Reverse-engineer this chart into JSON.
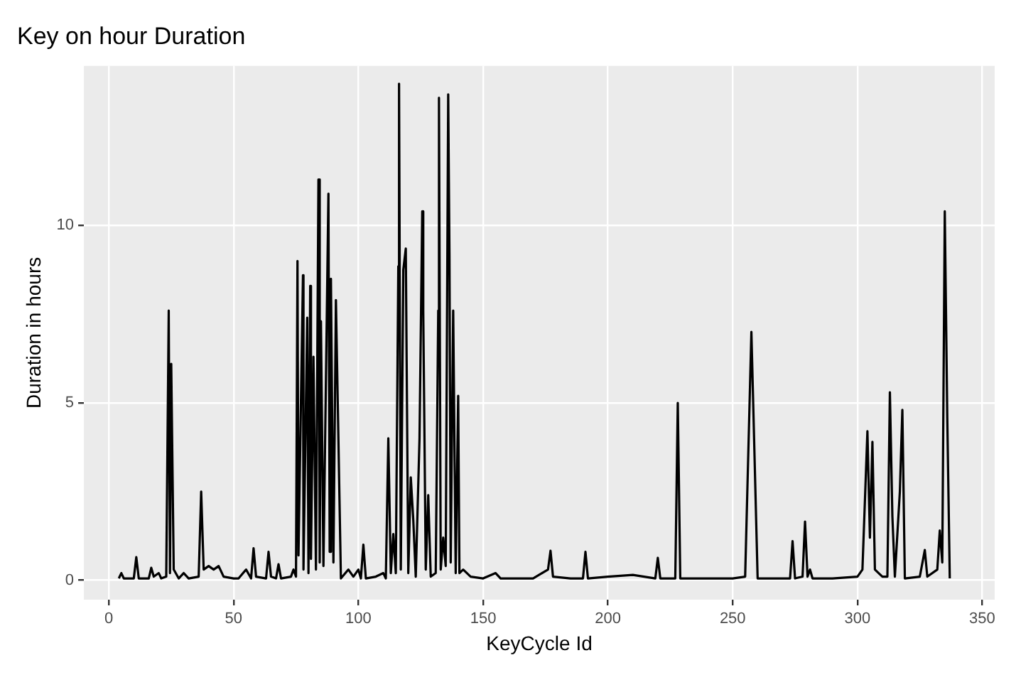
{
  "chart_data": {
    "type": "line",
    "title": "Key on hour Duration",
    "xlabel": "KeyCycle Id",
    "ylabel": "Duration in hours",
    "xlim": [
      -10,
      355
    ],
    "xticks": [
      0,
      50,
      100,
      150,
      200,
      250,
      300,
      350
    ],
    "ylim": [
      -0.55,
      14.5
    ],
    "yticks": [
      0,
      5,
      10
    ],
    "grid": true,
    "marker": "none",
    "line_style": "solid",
    "legend": false,
    "series": [
      {
        "color": "#000000",
        "x": [
          4,
          5,
          6,
          10,
          11,
          12,
          16,
          17,
          18,
          20,
          21,
          23,
          24,
          24.5,
          25,
          26,
          28,
          30,
          32,
          36,
          37,
          38,
          40,
          42,
          44,
          46,
          50,
          52,
          55,
          57,
          58,
          59,
          63,
          64,
          65,
          67,
          68,
          69,
          73,
          74,
          75,
          75.6,
          76,
          77.8,
          78,
          79.5,
          80,
          80.7,
          81,
          82,
          83,
          84,
          84.5,
          85,
          86,
          88,
          88.5,
          89,
          90,
          91,
          93,
          96,
          98,
          100,
          101,
          102,
          103,
          107,
          110,
          111,
          112,
          113,
          114,
          115,
          116,
          116.3,
          117,
          118,
          119,
          120,
          121,
          122,
          123,
          124.5,
          125.6,
          126,
          127,
          128,
          129,
          131,
          132,
          132.3,
          133,
          134,
          135,
          136,
          136.5,
          137,
          138,
          139,
          140,
          140.5,
          142,
          145,
          150,
          155,
          157,
          170,
          176,
          177,
          178,
          185,
          190,
          191,
          192,
          200,
          210,
          219,
          220,
          221,
          227,
          228,
          229,
          240,
          250,
          255,
          257.5,
          260,
          270,
          273,
          274,
          275,
          278,
          279,
          280,
          281,
          282,
          290,
          300,
          302,
          304,
          305,
          306,
          307,
          310,
          312,
          313,
          314,
          315,
          317,
          318,
          319,
          325,
          327,
          328,
          332,
          333,
          334,
          335,
          336,
          337
        ],
        "values": [
          0.05,
          0.2,
          0.05,
          0.05,
          0.65,
          0.05,
          0.05,
          0.35,
          0.1,
          0.2,
          0.05,
          0.1,
          7.6,
          0.2,
          6.1,
          0.3,
          0.05,
          0.2,
          0.05,
          0.1,
          2.5,
          0.3,
          0.4,
          0.3,
          0.4,
          0.1,
          0.05,
          0.05,
          0.3,
          0.05,
          0.9,
          0.1,
          0.05,
          0.8,
          0.1,
          0.05,
          0.45,
          0.05,
          0.1,
          0.3,
          0.1,
          9.0,
          0.7,
          8.6,
          0.3,
          7.4,
          0.2,
          8.3,
          0.6,
          6.3,
          0.3,
          11.3,
          0.5,
          7.3,
          0.4,
          10.9,
          0.8,
          8.5,
          0.5,
          7.9,
          0.05,
          0.3,
          0.1,
          0.3,
          0.05,
          1.0,
          0.05,
          0.1,
          0.2,
          0.05,
          4.0,
          0.2,
          1.3,
          0.2,
          8.85,
          14.0,
          0.3,
          8.75,
          9.35,
          0.2,
          2.9,
          1.7,
          0.1,
          4.0,
          10.4,
          7.6,
          0.3,
          2.4,
          0.1,
          0.2,
          7.6,
          13.6,
          0.3,
          1.2,
          0.4,
          13.7,
          9.2,
          0.5,
          7.6,
          0.2,
          5.2,
          0.2,
          0.3,
          0.1,
          0.05,
          0.2,
          0.05,
          0.05,
          0.3,
          0.83,
          0.1,
          0.05,
          0.05,
          0.8,
          0.05,
          0.1,
          0.15,
          0.05,
          0.63,
          0.05,
          0.05,
          5.0,
          0.05,
          0.05,
          0.05,
          0.1,
          7.0,
          0.05,
          0.05,
          0.05,
          1.1,
          0.05,
          0.1,
          1.65,
          0.1,
          0.3,
          0.05,
          0.05,
          0.1,
          0.3,
          4.2,
          1.2,
          3.9,
          0.3,
          0.1,
          0.1,
          5.3,
          1.8,
          0.1,
          2.5,
          4.8,
          0.05,
          0.1,
          0.85,
          0.1,
          0.3,
          1.4,
          0.5,
          10.4,
          4.6,
          0.05
        ]
      }
    ]
  }
}
